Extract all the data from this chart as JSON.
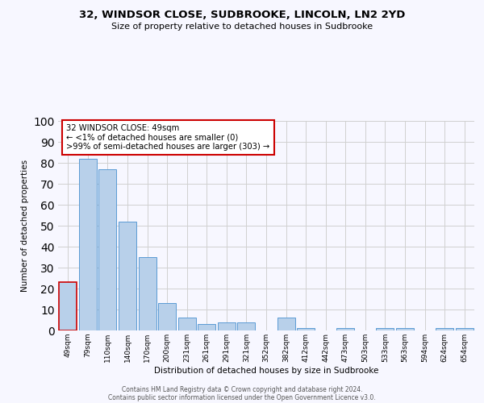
{
  "title": "32, WINDSOR CLOSE, SUDBROOKE, LINCOLN, LN2 2YD",
  "subtitle": "Size of property relative to detached houses in Sudbrooke",
  "xlabel": "Distribution of detached houses by size in Sudbrooke",
  "ylabel": "Number of detached properties",
  "bar_labels": [
    "49sqm",
    "79sqm",
    "110sqm",
    "140sqm",
    "170sqm",
    "200sqm",
    "231sqm",
    "261sqm",
    "291sqm",
    "321sqm",
    "352sqm",
    "382sqm",
    "412sqm",
    "442sqm",
    "473sqm",
    "503sqm",
    "533sqm",
    "563sqm",
    "594sqm",
    "624sqm",
    "654sqm"
  ],
  "bar_values": [
    23,
    82,
    77,
    52,
    35,
    13,
    6,
    3,
    4,
    4,
    0,
    6,
    1,
    0,
    1,
    0,
    1,
    1,
    0,
    1,
    1
  ],
  "bar_color": "#b8d0ea",
  "bar_edge_color": "#5b9bd5",
  "highlight_bar_index": 0,
  "highlight_bar_edge_color": "#cc0000",
  "annotation_box_text": "32 WINDSOR CLOSE: 49sqm\n← <1% of detached houses are smaller (0)\n>99% of semi-detached houses are larger (303) →",
  "ylim": [
    0,
    100
  ],
  "yticks": [
    0,
    10,
    20,
    30,
    40,
    50,
    60,
    70,
    80,
    90,
    100
  ],
  "background_color": "#f7f7ff",
  "grid_color": "#d0d0d0",
  "footer1": "Contains HM Land Registry data © Crown copyright and database right 2024.",
  "footer2": "Contains public sector information licensed under the Open Government Licence v3.0."
}
